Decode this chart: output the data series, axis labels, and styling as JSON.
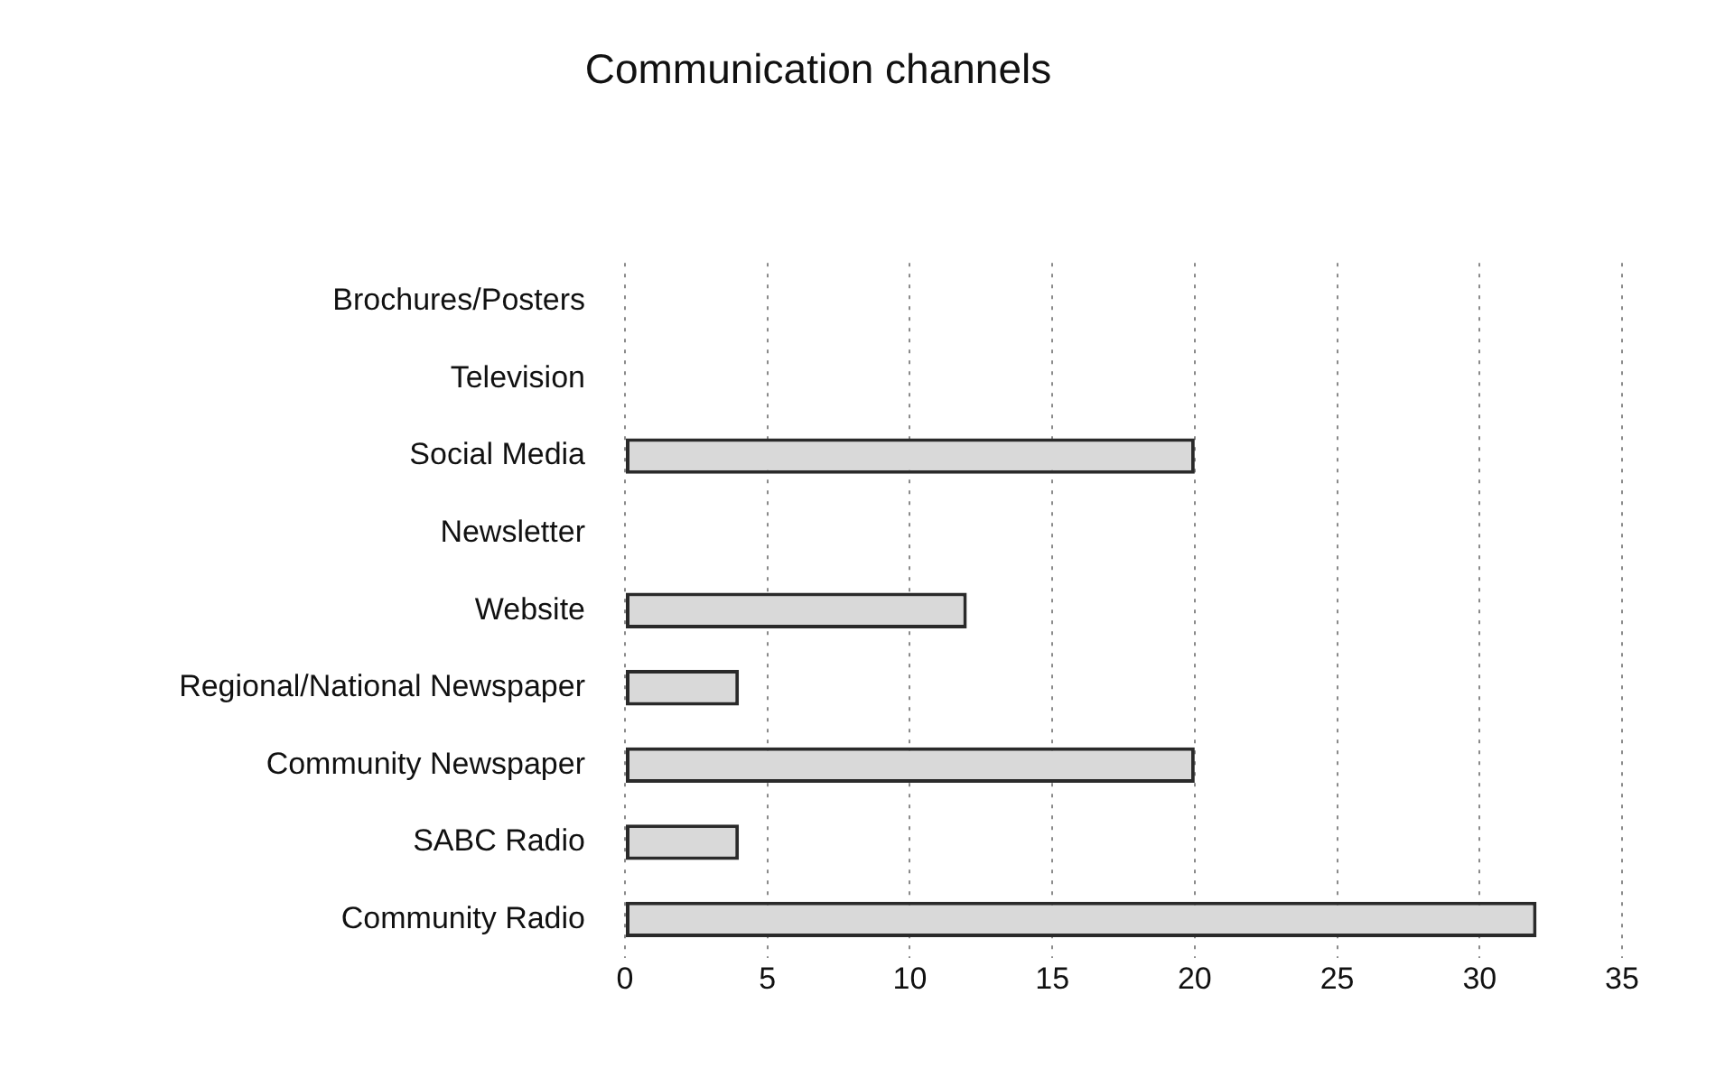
{
  "chart_data": {
    "type": "bar",
    "orientation": "horizontal",
    "title": "Communication channels",
    "categories": [
      "Brochures/Posters",
      "Television",
      "Social Media",
      "Newsletter",
      "Website",
      "Regional/National Newspaper",
      "Community Newspaper",
      "SABC Radio",
      "Community Radio"
    ],
    "values": [
      0,
      0,
      20,
      0,
      12,
      4,
      20,
      4,
      32
    ],
    "color": "#d9d9d9",
    "xlim": [
      0,
      35
    ],
    "xticks": [
      0,
      5,
      10,
      15,
      20,
      25,
      30,
      35
    ],
    "grid": "x",
    "legend": false
  }
}
